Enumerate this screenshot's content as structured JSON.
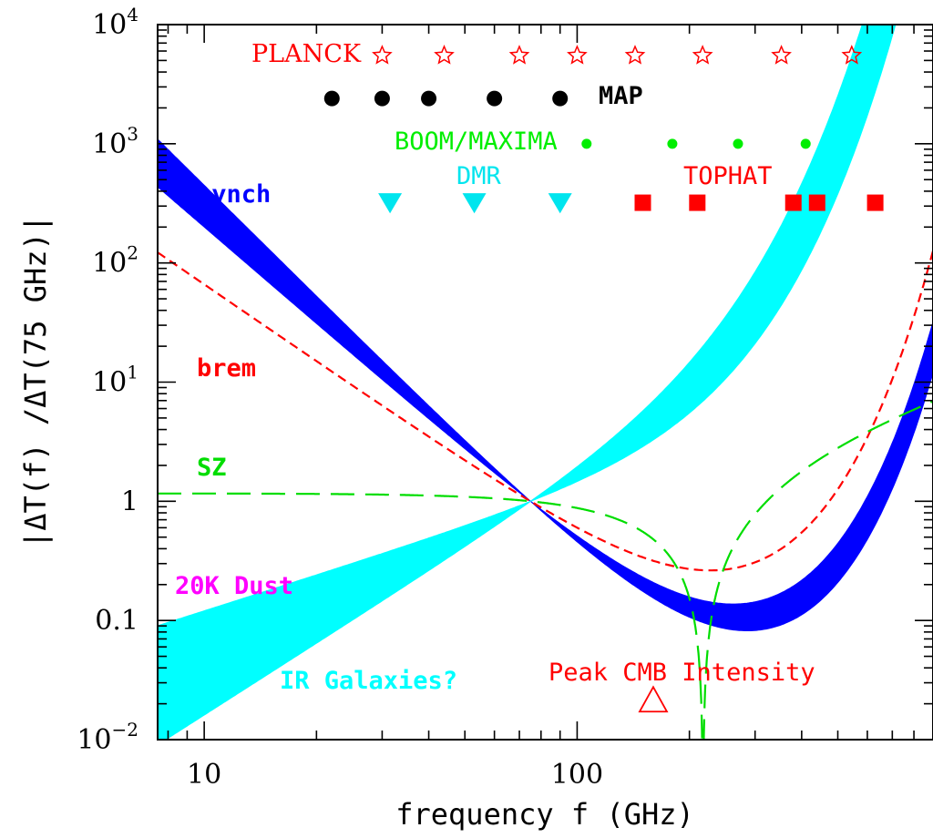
{
  "chart_data": {
    "type": "line",
    "xlabel": "frequency f (GHz)",
    "ylabel": "|ΔT(f) /ΔT(75 GHz)|",
    "xscale": "log",
    "yscale": "log",
    "xlim": [
      7.5,
      900
    ],
    "ylim": [
      0.01,
      10000
    ],
    "x_ticks": [
      {
        "value": 10,
        "label": "10"
      },
      {
        "value": 100,
        "label": "100"
      }
    ],
    "y_ticks": [
      {
        "value": 10000,
        "base": "10",
        "exp": "4"
      },
      {
        "value": 1000,
        "base": "10",
        "exp": "3"
      },
      {
        "value": 100,
        "base": "10",
        "exp": "2"
      },
      {
        "value": 10,
        "base": "10",
        "exp": "1"
      },
      {
        "value": 1,
        "base": "1",
        "exp": ""
      },
      {
        "value": 0.1,
        "base": "0.1",
        "exp": ""
      },
      {
        "value": 0.01,
        "base": "10",
        "exp": "−2"
      }
    ],
    "pivot": {
      "x": 75,
      "y": 1
    },
    "colors": {
      "synch": "#0000ff",
      "brem": "#ff0000",
      "sz": "#00dd00",
      "dust": "#ff00ff",
      "ir": "#00ffff",
      "planck": "#ff0000",
      "map": "#000000",
      "boom": "#00ee00",
      "dmr": "#00e5ee",
      "tophat": "#ff0000",
      "peak": "#ff0000"
    },
    "bands": [
      {
        "id": "synch",
        "name": "synch",
        "color": "#0000ff",
        "beta_min": -2.7,
        "beta_max": -3.1
      },
      {
        "id": "dust",
        "name": "20K Dust",
        "color": "#ff00ff",
        "dust_temp": 20,
        "beta_min": 1.5,
        "beta_max": 2.0
      },
      {
        "id": "ir",
        "name": "IR Galaxies?",
        "color": "#00ffff",
        "dust_temp": 40,
        "beta_min": 1.0,
        "beta_max": 2.0
      }
    ],
    "lines": [
      {
        "id": "brem",
        "name": "brem",
        "color": "#ff0000",
        "beta": -2.15,
        "dash": "10 6"
      },
      {
        "id": "sz",
        "name": "SZ",
        "color": "#00dd00",
        "dash": "26 12"
      }
    ],
    "experiments": [
      {
        "id": "planck",
        "name": "PLANCK",
        "color": "#ff0000",
        "marker": "star",
        "y": 5500,
        "x": [
          30,
          44,
          70,
          100,
          143,
          217,
          353,
          545
        ]
      },
      {
        "id": "map",
        "name": "MAP",
        "color": "#000000",
        "marker": "circle",
        "y": 2400,
        "x": [
          22,
          30,
          40,
          60,
          90
        ]
      },
      {
        "id": "boom",
        "name": "BOOM/MAXIMA",
        "color": "#00ee00",
        "marker": "small-circle",
        "y": 1000,
        "x": [
          106,
          180,
          270,
          410
        ]
      },
      {
        "id": "dmr",
        "name": "DMR",
        "color": "#00e5ee",
        "marker": "triangle-down",
        "y": 320,
        "x": [
          31.5,
          53,
          90
        ]
      },
      {
        "id": "tophat",
        "name": "TOPHAT",
        "color": "#ff0000",
        "marker": "square",
        "y": 320,
        "x": [
          150,
          210,
          380,
          440,
          630
        ]
      },
      {
        "id": "peak",
        "name": "Peak CMB Intensity",
        "color": "#ff0000",
        "marker": "triangle-open",
        "y": 0.0215,
        "x": [
          160
        ]
      }
    ]
  }
}
